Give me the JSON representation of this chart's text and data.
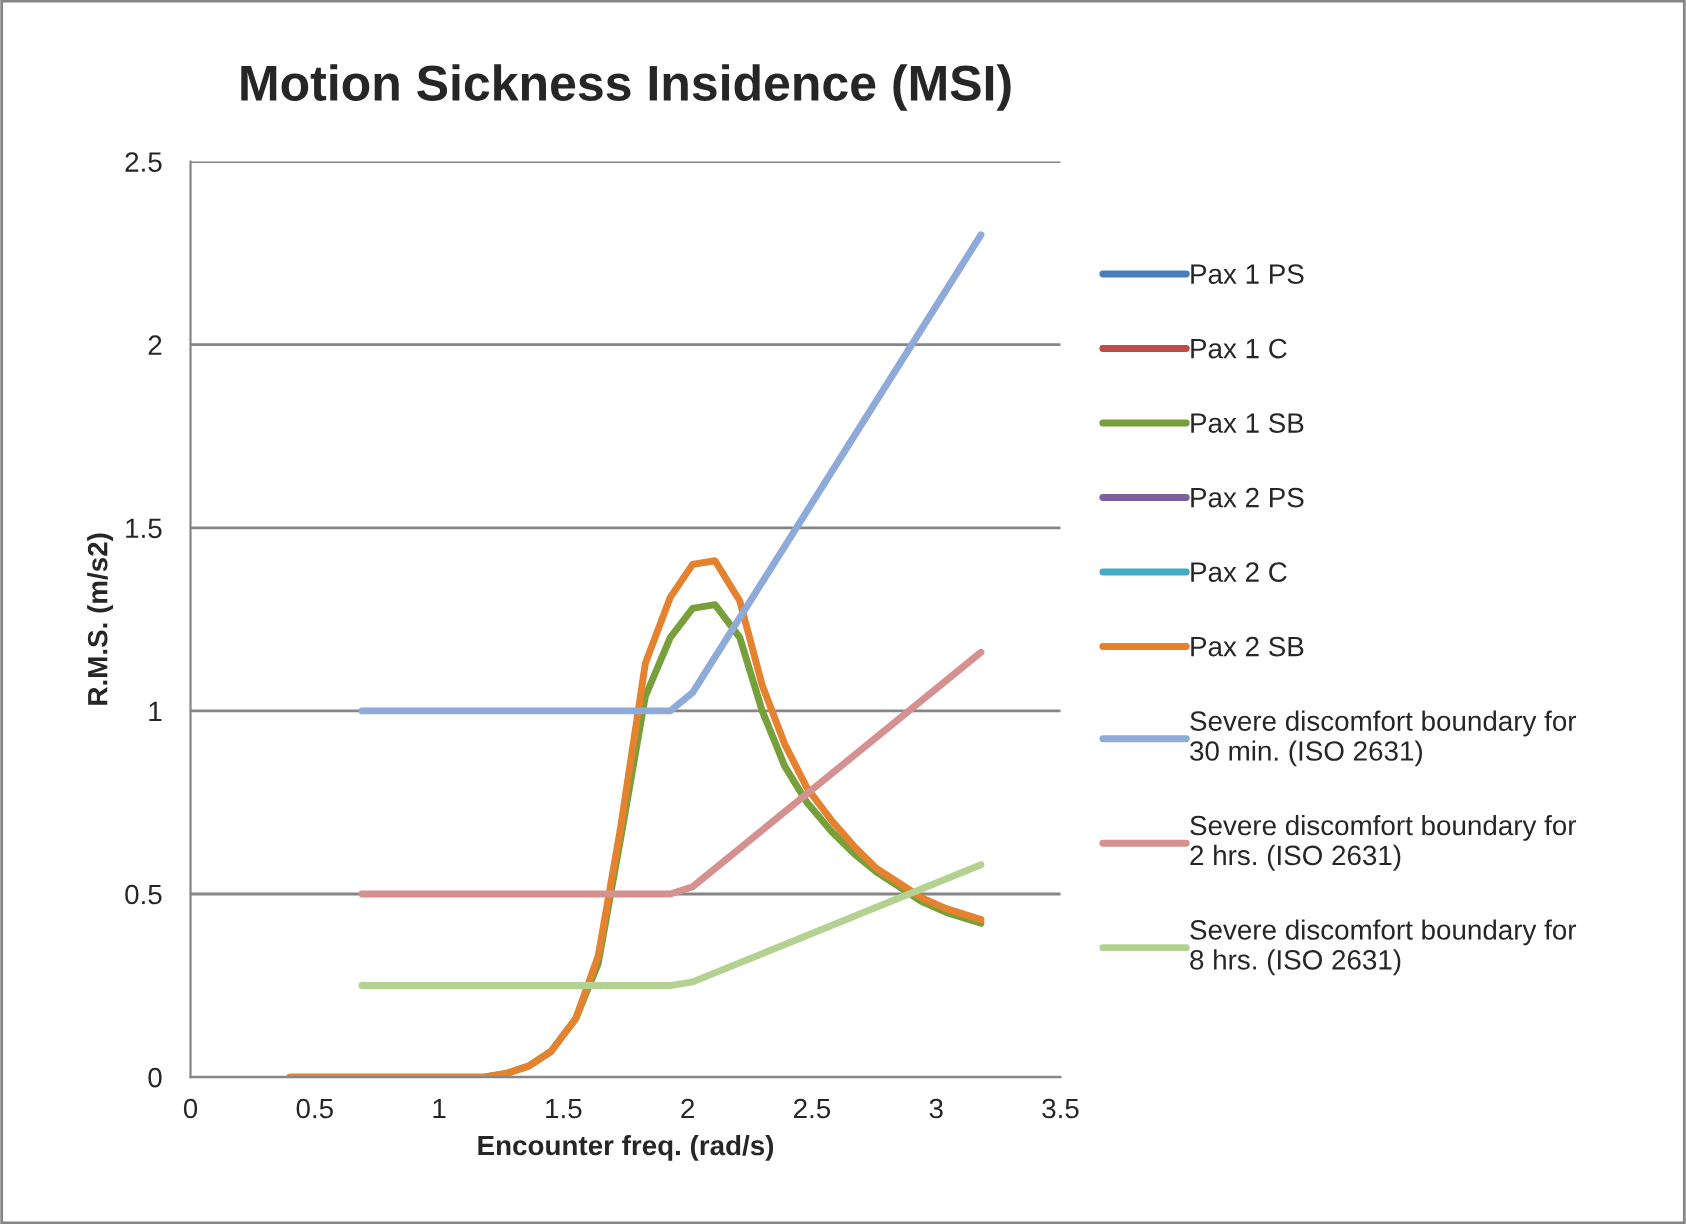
{
  "chart_data": {
    "type": "line",
    "title": "Motion Sickness Insidence (MSI)",
    "xlabel": "Encounter freq. (rad/s)",
    "ylabel": "R.M.S. (m/s2)",
    "xlim": [
      0,
      3.5
    ],
    "xticks": [
      0,
      0.5,
      1,
      1.5,
      2,
      2.5,
      3,
      3.5
    ],
    "ylim": [
      0,
      2.5
    ],
    "yticks": [
      0,
      0.5,
      1,
      1.5,
      2,
      2.5
    ],
    "grid": "y",
    "legend": "right",
    "marker": "none",
    "line_style": "solid",
    "series": [
      {
        "name": "Pax 1 PS",
        "color": "#4a7ebb"
      },
      {
        "name": "Pax 1 C",
        "color": "#be4b48"
      },
      {
        "name": "Pax 1 SB",
        "color": "#77a03c",
        "x": [
          0.4,
          1.18,
          1.27,
          1.36,
          1.45,
          1.55,
          1.64,
          1.73,
          1.83,
          1.93,
          2.02,
          2.11,
          2.21,
          2.3,
          2.39,
          2.48,
          2.58,
          2.67,
          2.76,
          2.85,
          2.94,
          3.04,
          3.18
        ],
        "values": [
          0,
          0,
          0.01,
          0.03,
          0.07,
          0.16,
          0.31,
          0.65,
          1.04,
          1.2,
          1.28,
          1.29,
          1.2,
          1.0,
          0.85,
          0.75,
          0.67,
          0.61,
          0.56,
          0.52,
          0.48,
          0.45,
          0.42
        ]
      },
      {
        "name": "Pax 2 PS",
        "color": "#7d60a0"
      },
      {
        "name": "Pax 2 C",
        "color": "#46aac5"
      },
      {
        "name": "Pax 2 SB",
        "color": "#e4822f",
        "x": [
          0.4,
          1.18,
          1.27,
          1.36,
          1.45,
          1.55,
          1.64,
          1.73,
          1.83,
          1.93,
          2.02,
          2.11,
          2.21,
          2.3,
          2.39,
          2.48,
          2.58,
          2.67,
          2.76,
          2.85,
          2.94,
          3.04,
          3.18
        ],
        "values": [
          0,
          0,
          0.01,
          0.03,
          0.07,
          0.16,
          0.33,
          0.68,
          1.13,
          1.31,
          1.4,
          1.41,
          1.3,
          1.07,
          0.91,
          0.79,
          0.7,
          0.63,
          0.57,
          0.53,
          0.49,
          0.46,
          0.43
        ]
      },
      {
        "name": "Severe discomfort boundary for 30 min. (ISO 2631)",
        "color": "#8eaad8",
        "x": [
          0.69,
          1.93,
          2.02,
          3.18
        ],
        "values": [
          1.0,
          1.0,
          1.05,
          2.3
        ]
      },
      {
        "name": "Severe discomfort boundary for 2 hrs. (ISO 2631)",
        "color": "#d49190",
        "x": [
          0.69,
          1.93,
          2.02,
          3.18
        ],
        "values": [
          0.5,
          0.5,
          0.52,
          1.16
        ]
      },
      {
        "name": "Severe discomfort boundary for 8 hrs. (ISO 2631)",
        "color": "#b3d190",
        "x": [
          0.69,
          1.93,
          2.02,
          3.18
        ],
        "values": [
          0.25,
          0.25,
          0.26,
          0.58
        ]
      }
    ]
  }
}
